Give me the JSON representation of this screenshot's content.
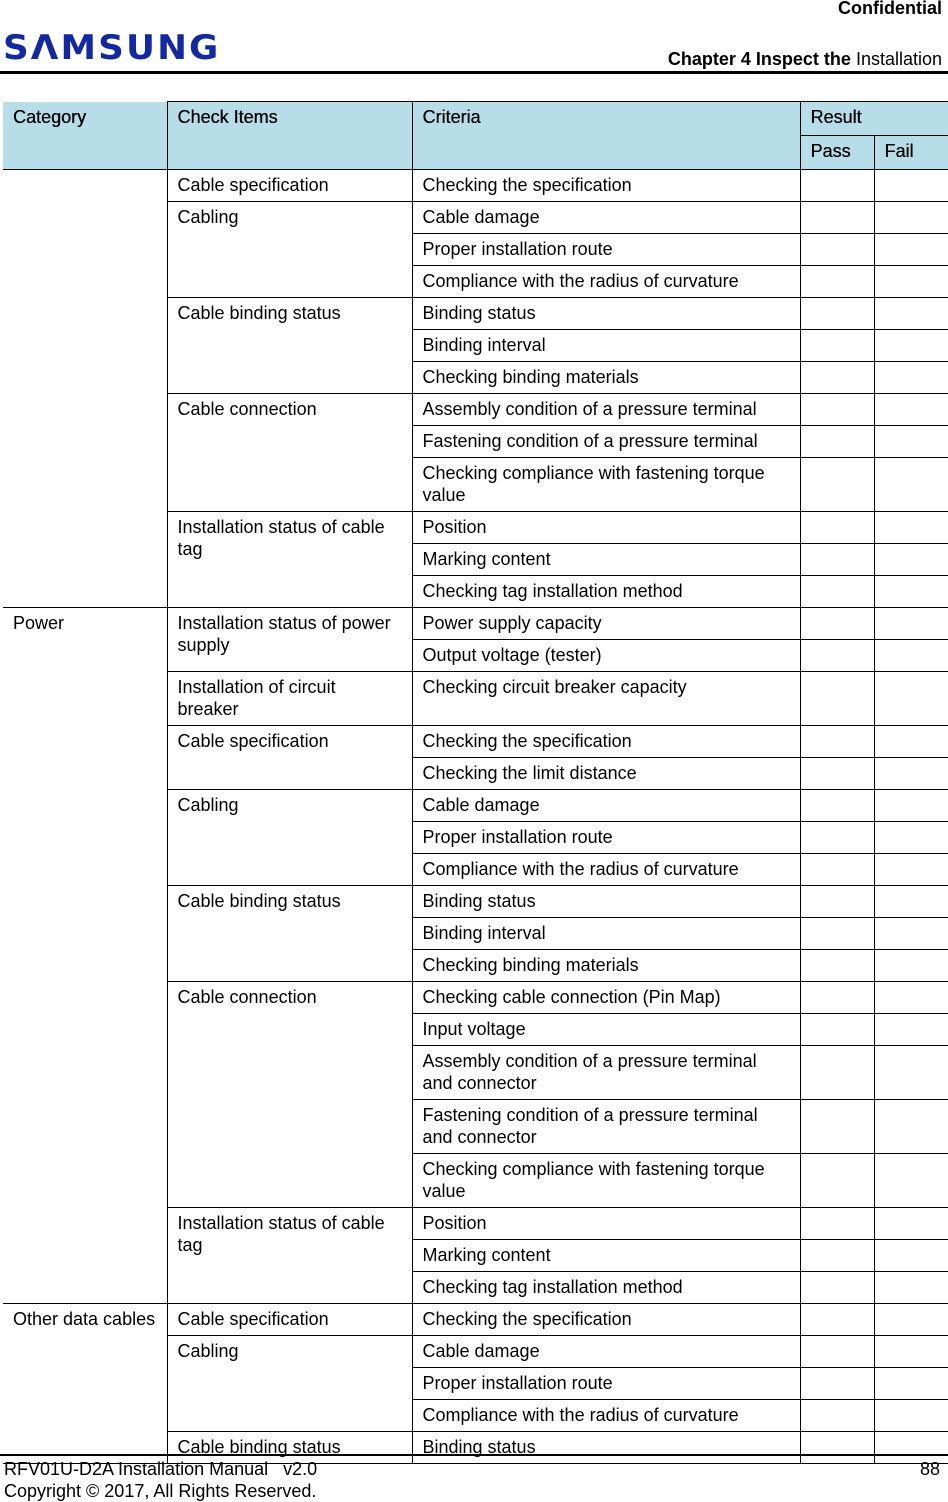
{
  "header": {
    "confidential": "Confidential",
    "logo": "SAMSUNG",
    "chapter_bold": "Chapter 4 Inspect the",
    "chapter_rest": " Installation"
  },
  "table": {
    "headers": {
      "category": "Category",
      "check_items": "Check Items",
      "criteria": "Criteria",
      "result": "Result",
      "pass": "Pass",
      "fail": "Fail"
    },
    "categories": [
      {
        "name": "",
        "items": [
          {
            "name": "Cable specification",
            "criteria": [
              "Checking the specification"
            ]
          },
          {
            "name": "Cabling",
            "criteria": [
              "Cable damage",
              "Proper installation route",
              "Compliance with the radius of curvature"
            ]
          },
          {
            "name": "Cable binding status",
            "criteria": [
              "Binding status",
              "Binding interval",
              "Checking binding materials"
            ]
          },
          {
            "name": "Cable connection",
            "criteria": [
              "Assembly condition of a pressure terminal",
              "Fastening condition of a pressure terminal",
              "Checking compliance with fastening torque value"
            ]
          },
          {
            "name": "Installation status of cable tag",
            "criteria": [
              "Position",
              "Marking content",
              "Checking tag installation method"
            ]
          }
        ]
      },
      {
        "name": "Power",
        "items": [
          {
            "name": "Installation status of power supply",
            "criteria": [
              "Power supply capacity",
              "Output voltage (tester)"
            ]
          },
          {
            "name": "Installation of circuit breaker",
            "criteria": [
              "Checking circuit breaker capacity"
            ],
            "tall": true
          },
          {
            "name": "Cable specification",
            "criteria": [
              "Checking the specification",
              "Checking the limit distance"
            ]
          },
          {
            "name": "Cabling",
            "criteria": [
              "Cable damage",
              "Proper installation route",
              "Compliance with the radius of curvature"
            ]
          },
          {
            "name": "Cable binding status",
            "criteria": [
              "Binding status",
              "Binding interval",
              "Checking binding materials"
            ]
          },
          {
            "name": "Cable connection",
            "criteria": [
              "Checking cable connection (Pin Map)",
              "Input voltage",
              "Assembly condition of a pressure terminal and connector",
              "Fastening condition of a pressure terminal and connector",
              "Checking compliance with fastening torque value"
            ]
          },
          {
            "name": "Installation status of cable tag",
            "criteria": [
              "Position",
              "Marking content",
              "Checking tag installation method"
            ]
          }
        ]
      },
      {
        "name": "Other data cables",
        "items": [
          {
            "name": "Cable specification",
            "criteria": [
              "Checking the specification"
            ]
          },
          {
            "name": "Cabling",
            "criteria": [
              "Cable damage",
              "Proper installation route",
              "Compliance with the radius of curvature"
            ]
          },
          {
            "name": "Cable binding status",
            "criteria": [
              "Binding status"
            ]
          }
        ]
      }
    ]
  },
  "footer": {
    "manual": "RFV01U-D2A Installation Manual   v2.0",
    "copyright": "Copyright © 2017, All Rights Reserved.",
    "page": "88"
  }
}
